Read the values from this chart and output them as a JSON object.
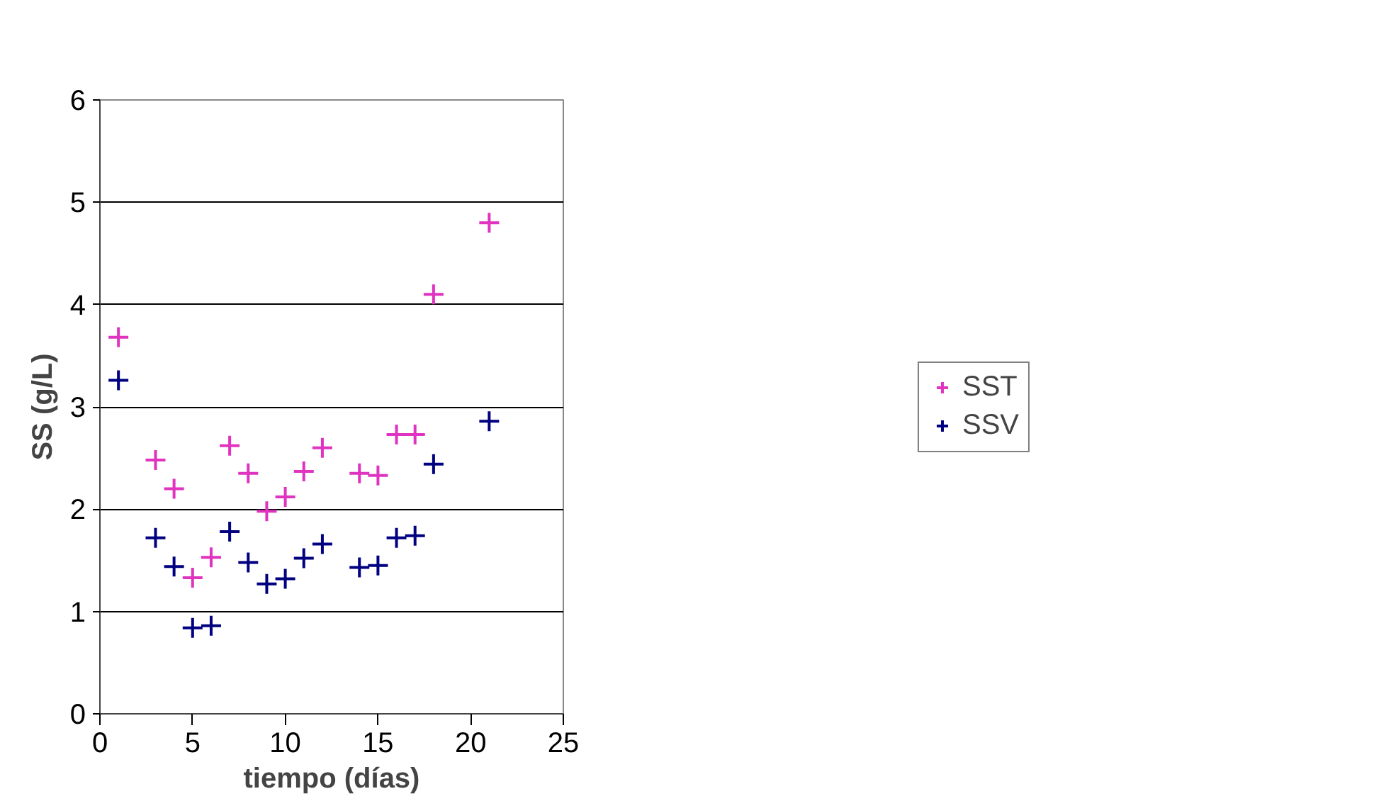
{
  "chart_data": {
    "type": "scatter",
    "xlabel": "tiempo (días)",
    "ylabel": "SS (g/L)",
    "x": [
      1,
      3,
      4,
      5,
      6,
      7,
      8,
      9,
      10,
      11,
      12,
      14,
      15,
      16,
      17,
      18,
      21
    ],
    "series": [
      {
        "name": "SST",
        "color": "#e033c0",
        "values": [
          3.68,
          2.48,
          2.2,
          1.33,
          1.53,
          2.62,
          2.35,
          1.98,
          2.12,
          2.37,
          2.6,
          2.35,
          2.33,
          2.73,
          2.73,
          4.1,
          4.8
        ]
      },
      {
        "name": "SSV",
        "color": "#000080",
        "values": [
          3.26,
          1.72,
          1.44,
          0.84,
          0.86,
          1.78,
          1.48,
          1.27,
          1.32,
          1.52,
          1.66,
          1.43,
          1.45,
          1.72,
          1.74,
          2.44,
          2.86
        ]
      }
    ],
    "xlim": [
      0,
      25
    ],
    "xticks": [
      0,
      5,
      10,
      15,
      20,
      25
    ],
    "ylim": [
      0,
      6
    ],
    "yticks": [
      0,
      1,
      2,
      3,
      4,
      5,
      6
    ],
    "grid": "y",
    "legend": "right",
    "marker": "cross"
  }
}
